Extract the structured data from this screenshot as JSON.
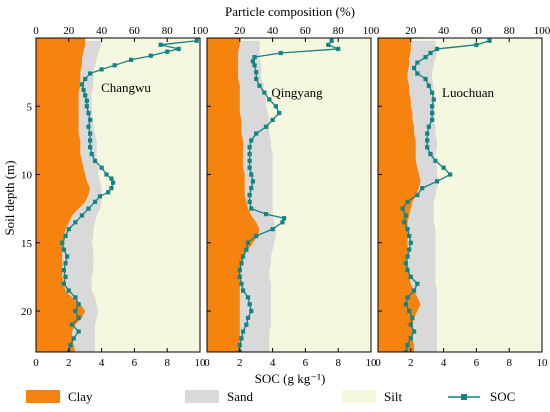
{
  "chart_data": {
    "type": "area",
    "title": "Particle composition (%)",
    "xlabel": "SOC (g kg⁻¹)",
    "ylabel": "Soil depth (m)",
    "top_axis": {
      "label": "Particle composition (%)",
      "range": [
        0,
        100
      ],
      "ticks": [
        "0",
        "20",
        "40",
        "60",
        "80",
        "100"
      ]
    },
    "bottom_axis": {
      "label": "SOC (g kg⁻¹)",
      "range": [
        0,
        10
      ],
      "ticks": [
        "0",
        "2",
        "4",
        "6",
        "8",
        "10"
      ]
    },
    "y_axis": {
      "range": [
        0,
        23
      ],
      "inverted": true,
      "ticks": [
        "5",
        "10",
        "15",
        "20"
      ]
    },
    "legend": {
      "placement": "bottom",
      "items": [
        {
          "label": "Clay",
          "color": "#f7830f",
          "kind": "area"
        },
        {
          "label": "Sand",
          "color": "#d9d9d9",
          "kind": "area"
        },
        {
          "label": "Silt",
          "color": "#f6f7df",
          "kind": "area"
        },
        {
          "label": "SOC",
          "color": "#138384",
          "kind": "line-square"
        }
      ]
    },
    "panels": [
      {
        "name": "Changwu",
        "depth": [
          0.2,
          0.5,
          1,
          1.5,
          2,
          2.5,
          3,
          3.5,
          4,
          4.5,
          5,
          5.5,
          6,
          6.5,
          7,
          7.5,
          8,
          8.5,
          9,
          9.5,
          10,
          10.5,
          11,
          11.5,
          12,
          12.5,
          13,
          13.5,
          14,
          14.5,
          15,
          15.5,
          16,
          16.5,
          17,
          17.5,
          18,
          18.5,
          19,
          19.5,
          20,
          20.5,
          21,
          21.5,
          22,
          22.5,
          23
        ],
        "clay_pct": [
          30,
          30,
          29,
          28,
          28,
          27,
          27,
          27,
          26,
          26,
          26,
          26,
          26,
          26,
          26,
          27,
          27,
          27,
          28,
          29,
          30,
          31,
          33,
          32,
          30,
          26,
          22,
          20,
          18,
          17,
          16,
          16,
          16,
          16,
          16,
          16,
          17,
          18,
          22,
          27,
          30,
          28,
          24,
          22,
          22,
          23,
          24
        ],
        "sand_pct": [
          10,
          10,
          9,
          9,
          8,
          8,
          8,
          8,
          8,
          8,
          8,
          8,
          9,
          9,
          10,
          10,
          10,
          10,
          9,
          9,
          8,
          8,
          7,
          8,
          10,
          13,
          15,
          16,
          17,
          18,
          18,
          19,
          19,
          19,
          19,
          18,
          17,
          16,
          14,
          10,
          8,
          9,
          12,
          14,
          14,
          13,
          12
        ],
        "soc_depth": [
          0.2,
          0.5,
          0.8,
          1.0,
          1.3,
          1.6,
          2.0,
          2.3,
          2.6,
          3.0,
          3.4,
          3.8,
          4.2,
          4.6,
          5.0,
          5.5,
          6.0,
          6.5,
          7.0,
          7.5,
          8.0,
          8.5,
          9.0,
          9.5,
          10.0,
          10.3,
          10.6,
          11.0,
          11.3,
          11.6,
          12.0,
          12.5,
          13.0,
          13.5,
          14.0,
          14.5,
          15.0,
          15.5,
          16.0,
          16.5,
          17.0,
          17.5,
          18.0,
          18.5,
          19.0,
          19.5,
          20.0,
          20.5,
          21.0,
          21.5,
          22.0,
          22.5,
          23.0
        ],
        "soc": [
          9.8,
          7.6,
          8.7,
          8.0,
          7.0,
          5.8,
          4.8,
          4.0,
          3.3,
          3.0,
          2.8,
          2.9,
          3.0,
          3.1,
          3.1,
          3.2,
          3.3,
          3.2,
          3.3,
          3.3,
          3.3,
          3.4,
          3.6,
          4.0,
          4.3,
          4.6,
          4.7,
          4.6,
          4.4,
          3.9,
          3.6,
          3.2,
          2.8,
          2.4,
          2.0,
          1.8,
          1.6,
          1.7,
          1.9,
          1.8,
          1.7,
          1.8,
          1.7,
          2.0,
          2.4,
          2.6,
          2.4,
          2.6,
          2.2,
          2.6,
          2.3,
          2.1,
          2.0
        ]
      },
      {
        "name": "Qingyang",
        "depth": [
          0.2,
          0.5,
          1,
          1.5,
          2,
          2.5,
          3,
          3.5,
          4,
          4.5,
          5,
          5.5,
          6,
          6.5,
          7,
          7.5,
          8,
          8.5,
          9,
          9.5,
          10,
          10.5,
          11,
          11.5,
          12,
          12.5,
          13,
          13.5,
          14,
          14.5,
          15,
          15.5,
          16,
          16.5,
          17,
          17.5,
          18,
          18.5,
          19,
          19.5,
          20,
          20.5,
          21,
          21.5,
          22,
          22.5,
          23
        ],
        "clay_pct": [
          20,
          20,
          19,
          19,
          19,
          19,
          19,
          20,
          20,
          20,
          20,
          20,
          21,
          21,
          21,
          22,
          22,
          22,
          22,
          22,
          23,
          23,
          23,
          23,
          24,
          25,
          27,
          30,
          32,
          31,
          28,
          25,
          22,
          21,
          20,
          20,
          20,
          20,
          20,
          20,
          20,
          20,
          20,
          20,
          20,
          20,
          20
        ],
        "sand_pct": [
          12,
          12,
          13,
          13,
          14,
          14,
          14,
          15,
          15,
          16,
          16,
          17,
          17,
          17,
          17,
          17,
          17,
          18,
          18,
          18,
          17,
          17,
          17,
          17,
          16,
          15,
          13,
          11,
          10,
          11,
          13,
          15,
          17,
          18,
          18,
          18,
          19,
          19,
          19,
          19,
          19,
          19,
          19,
          18,
          18,
          18,
          18
        ],
        "soc_depth": [
          0.2,
          0.5,
          0.8,
          1.1,
          1.4,
          1.7,
          2.0,
          2.5,
          3.0,
          3.5,
          4.0,
          4.5,
          5.0,
          5.5,
          6.0,
          6.5,
          7.0,
          7.5,
          8.0,
          8.5,
          9.0,
          9.5,
          10.0,
          10.5,
          11.0,
          11.5,
          12.0,
          12.5,
          12.9,
          13.2,
          13.5,
          14.0,
          14.5,
          15.0,
          15.5,
          16.0,
          16.5,
          17.0,
          17.5,
          18.0,
          18.5,
          19.0,
          19.5,
          20.0,
          20.5,
          21.0,
          21.5,
          22.0,
          22.5,
          23.0
        ],
        "soc": [
          7.6,
          7.4,
          8.0,
          4.5,
          2.9,
          2.8,
          2.9,
          3.0,
          3.0,
          3.2,
          3.5,
          3.8,
          4.2,
          4.4,
          4.0,
          3.6,
          3.0,
          2.7,
          2.6,
          2.6,
          2.6,
          2.6,
          2.7,
          2.8,
          2.7,
          2.6,
          2.6,
          2.7,
          3.6,
          4.7,
          4.6,
          4.0,
          3.0,
          2.5,
          2.4,
          2.2,
          2.1,
          2.0,
          2.0,
          2.1,
          2.2,
          2.5,
          2.6,
          2.7,
          2.5,
          2.4,
          2.2,
          2.1,
          2.0,
          2.0
        ]
      },
      {
        "name": "Luochuan",
        "depth": [
          0.2,
          0.5,
          1,
          1.5,
          2,
          2.5,
          3,
          3.5,
          4,
          4.5,
          5,
          5.5,
          6,
          6.5,
          7,
          7.5,
          8,
          8.5,
          9,
          9.5,
          10,
          10.5,
          11,
          11.5,
          12,
          12.5,
          13,
          13.5,
          14,
          14.5,
          15,
          15.5,
          16,
          16.5,
          17,
          17.5,
          18,
          18.5,
          19,
          19.5,
          20,
          20.5,
          21,
          21.5,
          22,
          22.5,
          23
        ],
        "clay_pct": [
          20,
          20,
          20,
          19,
          19,
          18,
          18,
          19,
          19,
          20,
          20,
          21,
          21,
          22,
          22,
          23,
          23,
          23,
          23,
          24,
          25,
          26,
          25,
          23,
          21,
          20,
          19,
          18,
          18,
          18,
          18,
          18,
          18,
          18,
          19,
          19,
          20,
          22,
          24,
          26,
          24,
          22,
          21,
          21,
          21,
          22,
          22
        ],
        "sand_pct": [
          15,
          15,
          16,
          16,
          15,
          15,
          15,
          15,
          14,
          14,
          14,
          14,
          13,
          13,
          13,
          13,
          13,
          12,
          12,
          12,
          11,
          11,
          11,
          12,
          13,
          14,
          15,
          16,
          17,
          17,
          17,
          17,
          17,
          17,
          16,
          16,
          15,
          14,
          12,
          10,
          12,
          14,
          15,
          15,
          15,
          14,
          14
        ],
        "soc_depth": [
          0.2,
          0.5,
          0.8,
          1.1,
          1.4,
          1.8,
          2.2,
          2.6,
          3.0,
          3.5,
          4.0,
          4.5,
          5.0,
          5.5,
          6.0,
          6.5,
          7.0,
          7.5,
          8.0,
          8.5,
          9.0,
          9.5,
          10.0,
          10.5,
          11.0,
          11.5,
          12.0,
          12.5,
          13.0,
          13.5,
          14.0,
          14.5,
          15.0,
          15.5,
          16.0,
          16.5,
          17.0,
          17.5,
          18.0,
          18.5,
          19.0,
          19.5,
          20.0,
          20.5,
          21.0,
          21.5,
          22.0,
          22.5,
          23.0
        ],
        "soc": [
          6.8,
          6.0,
          3.6,
          3.2,
          2.9,
          2.4,
          2.2,
          2.4,
          2.9,
          3.1,
          3.3,
          3.4,
          3.3,
          3.3,
          3.3,
          3.1,
          3.0,
          3.0,
          3.0,
          3.2,
          3.5,
          4.0,
          4.4,
          3.6,
          2.7,
          2.4,
          1.8,
          1.5,
          1.7,
          1.6,
          1.8,
          1.9,
          2.0,
          1.9,
          1.8,
          1.7,
          1.8,
          2.0,
          2.4,
          2.2,
          1.8,
          1.7,
          1.9,
          2.1,
          2.0,
          2.2,
          2.0,
          1.8,
          1.7
        ]
      }
    ]
  }
}
